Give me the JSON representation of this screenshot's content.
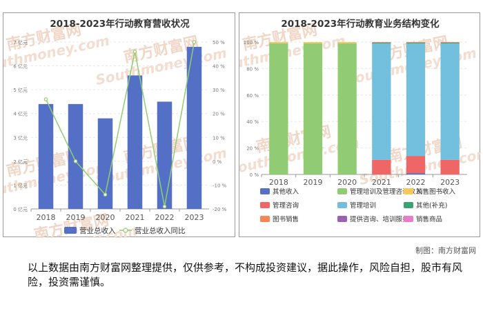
{
  "credit": "制图：南方财富网",
  "disclaimer": "以上数据由南方财富网整理提供，仅供参考，不构成投资建议，据此操作，风险自担，股市有风险，投资需谨慎。",
  "watermark": {
    "cn": "南方财富网",
    "en": "Southmoney.com"
  },
  "chart_data": [
    {
      "type": "bar",
      "title": "2018-2023年行动教育营收状况",
      "categories": [
        "2018",
        "2019",
        "2020",
        "2021",
        "2022",
        "2023"
      ],
      "y_left": {
        "ticks": [
          "0 亿元",
          "1 亿元",
          "2 亿元",
          "3 亿元",
          "4 亿元",
          "5 亿元",
          "6 亿元",
          "7 亿元"
        ],
        "range": [
          0,
          7
        ]
      },
      "y_right": {
        "ticks": [
          "-20 %",
          "-10 %",
          "0 %",
          "10 %",
          "20 %",
          "30 %",
          "40 %",
          "50 %"
        ],
        "range": [
          -20,
          50
        ]
      },
      "series": [
        {
          "name": "营业总收入",
          "type": "bar",
          "axis": "left",
          "color": "#5470c6",
          "values": [
            4.4,
            4.4,
            3.8,
            5.6,
            4.5,
            6.8
          ]
        },
        {
          "name": "营业总收入同比",
          "type": "line",
          "axis": "right",
          "color": "#91cc75",
          "values": [
            26,
            0,
            -14,
            46,
            -19,
            50
          ]
        }
      ],
      "legend": "bottom",
      "grid": "horizontal"
    },
    {
      "type": "bar",
      "stacked": true,
      "percent": true,
      "title": "2018-2023年行动教育业务结构变化",
      "categories": [
        "2018",
        "2019",
        "2020",
        "2021",
        "2022",
        "2023"
      ],
      "y_ticks": [
        "0 %",
        "20 %",
        "40 %",
        "60 %",
        "80 %",
        "100 %"
      ],
      "ylim": [
        0,
        100
      ],
      "series": [
        {
          "name": "其他收入",
          "color": "#5470c6",
          "values": [
            0,
            0,
            0,
            0,
            1,
            0
          ]
        },
        {
          "name": "管理培训及管理咨询收入",
          "color": "#91cc75",
          "values": [
            99,
            99,
            99,
            0,
            0,
            0
          ]
        },
        {
          "name": "销售图书收入",
          "color": "#fac858",
          "values": [
            1,
            1,
            1,
            0,
            0,
            0
          ]
        },
        {
          "name": "管理咨询",
          "color": "#ee6666",
          "values": [
            0,
            0,
            0,
            11,
            13,
            11
          ]
        },
        {
          "name": "管理培训",
          "color": "#73c0de",
          "values": [
            0,
            0,
            0,
            88,
            85,
            88
          ]
        },
        {
          "name": "其他(补充)",
          "color": "#3ba272",
          "values": [
            0,
            0,
            0,
            0.5,
            0.5,
            0.5
          ]
        },
        {
          "name": "图书销售",
          "color": "#fc8452",
          "values": [
            0,
            0,
            0,
            0.5,
            0.5,
            0.5
          ]
        },
        {
          "name": "提供咨询、培训服务",
          "color": "#9a60b4",
          "values": [
            0,
            0,
            0,
            0,
            0,
            0
          ]
        },
        {
          "name": "销售商品",
          "color": "#ea7ccc",
          "values": [
            0,
            0,
            0,
            0,
            0,
            0
          ]
        }
      ],
      "legend": "bottom",
      "grid": "horizontal"
    }
  ]
}
